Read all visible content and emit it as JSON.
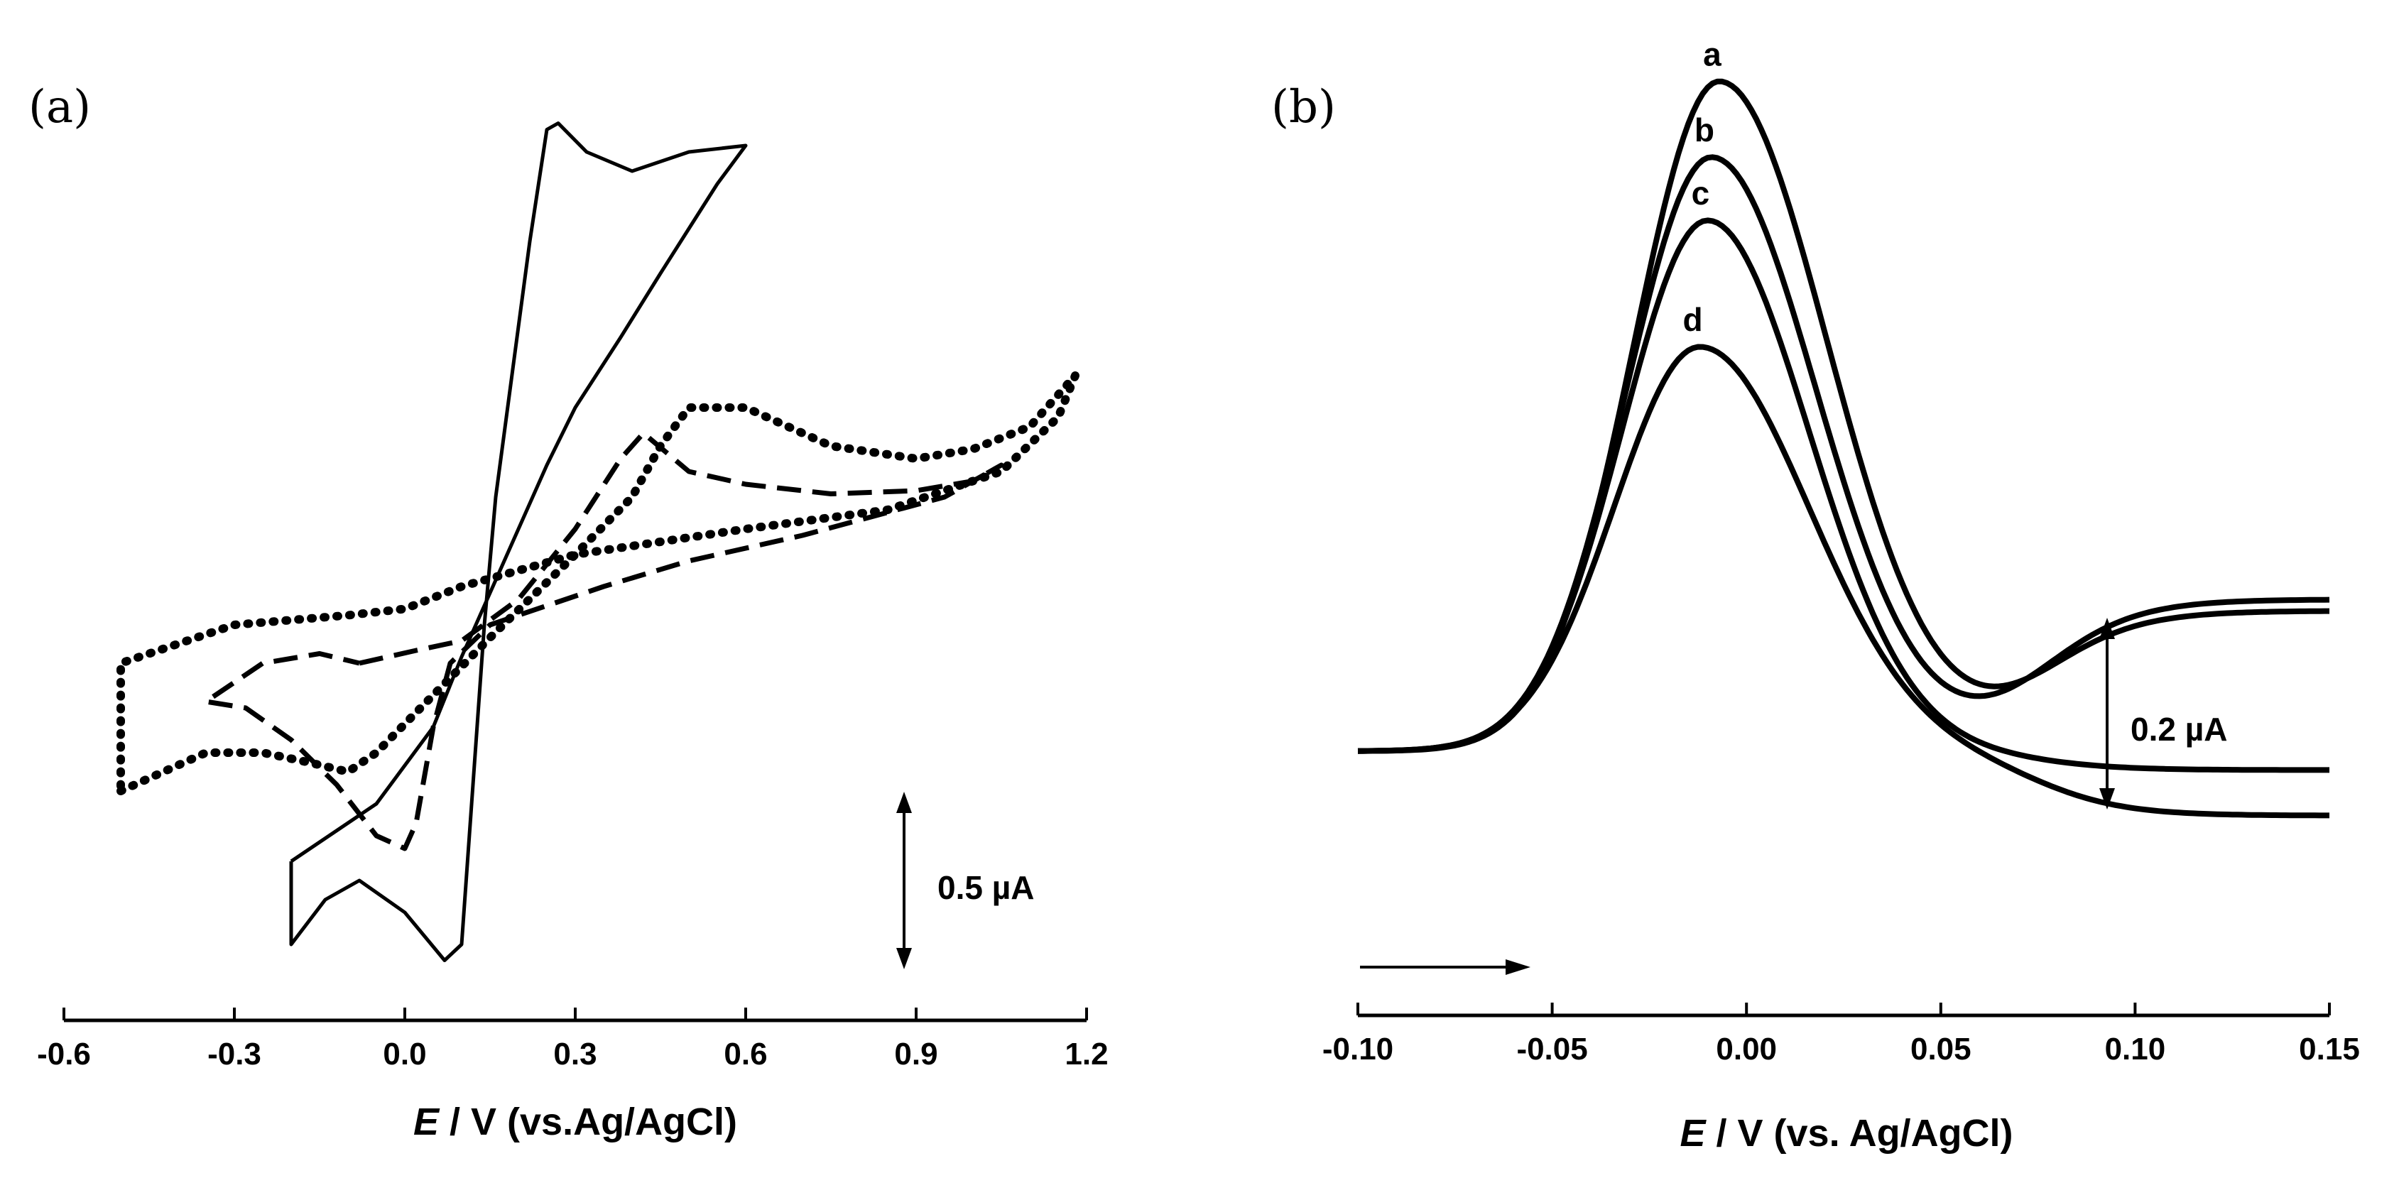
{
  "chart_data": [
    {
      "panel": "(a)",
      "type": "line",
      "xlabel_italic": "E",
      "xlabel_rest": " / V (vs.Ag/AgCl)",
      "xlim": [
        -0.6,
        1.2
      ],
      "x_ticks": [
        "-0.6",
        "-0.3",
        "0.0",
        "0.3",
        "0.6",
        "0.9",
        "1.2"
      ],
      "scale_bar": {
        "label": "0.5 µA",
        "value_uA": 0.5
      },
      "series": [
        {
          "name": "solid",
          "style": "solid",
          "points": [
            [
              -0.2,
              -0.74
            ],
            [
              -0.05,
              -0.56
            ],
            [
              0.05,
              -0.32
            ],
            [
              0.1,
              -0.1
            ],
            [
              0.15,
              0.1
            ],
            [
              0.2,
              0.3
            ],
            [
              0.25,
              0.5
            ],
            [
              0.3,
              0.68
            ],
            [
              0.38,
              0.9
            ],
            [
              0.45,
              1.1
            ],
            [
              0.55,
              1.38
            ],
            [
              0.6,
              1.5
            ],
            [
              0.5,
              1.48
            ],
            [
              0.4,
              1.42
            ],
            [
              0.32,
              1.48
            ],
            [
              0.27,
              1.57
            ],
            [
              0.25,
              1.55
            ],
            [
              0.22,
              1.2
            ],
            [
              0.19,
              0.8
            ],
            [
              0.16,
              0.4
            ],
            [
              0.14,
              0.0
            ],
            [
              0.12,
              -0.5
            ],
            [
              0.1,
              -1.0
            ],
            [
              0.07,
              -1.05
            ],
            [
              0.0,
              -0.9
            ],
            [
              -0.08,
              -0.8
            ],
            [
              -0.14,
              -0.86
            ],
            [
              -0.2,
              -1.0
            ],
            [
              -0.2,
              -0.74
            ]
          ]
        },
        {
          "name": "dashed",
          "style": "dashed",
          "points": [
            [
              -0.08,
              -0.12
            ],
            [
              0.02,
              -0.08
            ],
            [
              0.1,
              -0.05
            ],
            [
              0.2,
              0.08
            ],
            [
              0.3,
              0.3
            ],
            [
              0.38,
              0.52
            ],
            [
              0.42,
              0.6
            ],
            [
              0.5,
              0.48
            ],
            [
              0.6,
              0.44
            ],
            [
              0.75,
              0.41
            ],
            [
              0.9,
              0.42
            ],
            [
              1.0,
              0.45
            ],
            [
              1.05,
              0.5
            ],
            [
              0.95,
              0.4
            ],
            [
              0.7,
              0.28
            ],
            [
              0.5,
              0.2
            ],
            [
              0.35,
              0.12
            ],
            [
              0.25,
              0.06
            ],
            [
              0.15,
              0.0
            ],
            [
              0.08,
              -0.12
            ],
            [
              0.05,
              -0.32
            ],
            [
              0.02,
              -0.62
            ],
            [
              0.0,
              -0.7
            ],
            [
              -0.05,
              -0.66
            ],
            [
              -0.12,
              -0.5
            ],
            [
              -0.2,
              -0.36
            ],
            [
              -0.28,
              -0.26
            ],
            [
              -0.35,
              -0.24
            ],
            [
              -0.25,
              -0.12
            ],
            [
              -0.15,
              -0.09
            ],
            [
              -0.08,
              -0.12
            ]
          ]
        },
        {
          "name": "dotted",
          "style": "dotted",
          "points": [
            [
              -0.5,
              -0.52
            ],
            [
              -0.35,
              -0.4
            ],
            [
              -0.25,
              -0.4
            ],
            [
              -0.17,
              -0.43
            ],
            [
              -0.1,
              -0.46
            ],
            [
              -0.05,
              -0.4
            ],
            [
              0.05,
              -0.22
            ],
            [
              0.15,
              -0.04
            ],
            [
              0.3,
              0.22
            ],
            [
              0.4,
              0.4
            ],
            [
              0.45,
              0.56
            ],
            [
              0.5,
              0.68
            ],
            [
              0.6,
              0.68
            ],
            [
              0.75,
              0.56
            ],
            [
              0.9,
              0.52
            ],
            [
              1.0,
              0.55
            ],
            [
              1.1,
              0.62
            ],
            [
              1.18,
              0.78
            ],
            [
              1.15,
              0.65
            ],
            [
              1.05,
              0.48
            ],
            [
              0.85,
              0.36
            ],
            [
              0.6,
              0.3
            ],
            [
              0.3,
              0.22
            ],
            [
              0.1,
              0.12
            ],
            [
              0.0,
              0.05
            ],
            [
              -0.1,
              0.03
            ],
            [
              -0.3,
              0.0
            ],
            [
              -0.5,
              -0.12
            ],
            [
              -0.5,
              -0.52
            ]
          ]
        }
      ]
    },
    {
      "panel": "(b)",
      "type": "line",
      "xlabel_italic": "E",
      "xlabel_rest": " / V (vs. Ag/AgCl)",
      "xlim": [
        -0.1,
        0.15
      ],
      "x_ticks": [
        "-0.10",
        "-0.05",
        "0.00",
        "0.05",
        "0.10",
        "0.15"
      ],
      "scale_bar": {
        "label": "0.2 µA",
        "value_uA": 0.2
      },
      "scan_direction": "positive",
      "series": [
        {
          "name": "a",
          "label": "a",
          "peak_x": -0.007,
          "peak_y_uA": 0.52,
          "base_y_uA": -0.01,
          "sigma_left": 0.022,
          "sigma_right": 0.028,
          "tail_uA": 0.12
        },
        {
          "name": "b",
          "label": "b",
          "peak_x": -0.009,
          "peak_y_uA": 0.46,
          "base_y_uA": -0.01,
          "sigma_left": 0.022,
          "sigma_right": 0.027,
          "tail_uA": 0.13
        },
        {
          "name": "c",
          "label": "c",
          "peak_x": -0.01,
          "peak_y_uA": 0.41,
          "base_y_uA": -0.01,
          "sigma_left": 0.022,
          "sigma_right": 0.026,
          "tail_uA": -0.02
        },
        {
          "name": "d",
          "label": "d",
          "peak_x": -0.012,
          "peak_y_uA": 0.31,
          "base_y_uA": -0.01,
          "sigma_left": 0.022,
          "sigma_right": 0.028,
          "tail_uA": -0.06
        }
      ]
    }
  ]
}
